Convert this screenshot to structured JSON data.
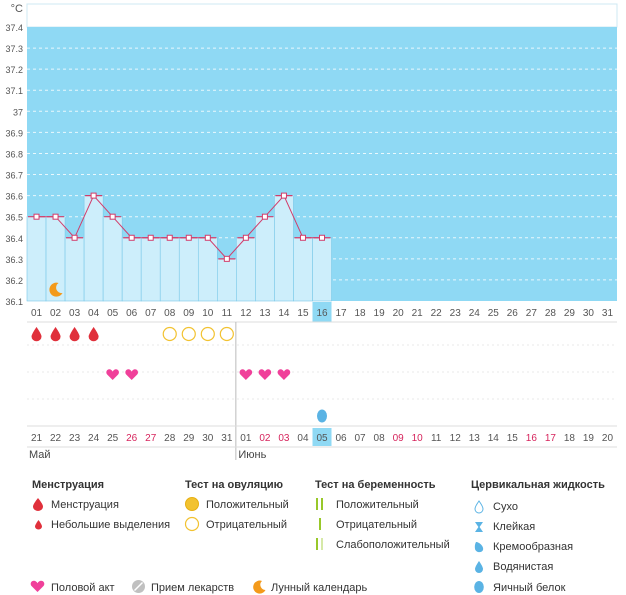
{
  "chart_data": {
    "type": "bar",
    "unit": "°C",
    "ylim": [
      36.1,
      37.4
    ],
    "y_ticks": [
      "36.1",
      "36.2",
      "36.3",
      "36.4",
      "36.5",
      "36.6",
      "36.7",
      "36.8",
      "36.9",
      "37",
      "37.1",
      "37.2",
      "37.3",
      "37.4"
    ],
    "top_days": [
      "01",
      "02",
      "03",
      "04",
      "05",
      "06",
      "07",
      "08",
      "09",
      "10",
      "11",
      "12",
      "13",
      "14",
      "15",
      "16",
      "17",
      "18",
      "19",
      "20",
      "21",
      "22",
      "23",
      "24",
      "25",
      "26",
      "27",
      "28",
      "29",
      "30",
      "31"
    ],
    "today_index": 15,
    "temperatures": [
      36.5,
      36.5,
      36.4,
      36.6,
      36.5,
      36.4,
      36.4,
      36.4,
      36.4,
      36.4,
      36.3,
      36.4,
      36.5,
      36.6,
      36.4,
      36.4
    ],
    "bottom_days": [
      {
        "d": "21",
        "red": false
      },
      {
        "d": "22",
        "red": false
      },
      {
        "d": "23",
        "red": false
      },
      {
        "d": "24",
        "red": false
      },
      {
        "d": "25",
        "red": false
      },
      {
        "d": "26",
        "red": true
      },
      {
        "d": "27",
        "red": true
      },
      {
        "d": "28",
        "red": false
      },
      {
        "d": "29",
        "red": false
      },
      {
        "d": "30",
        "red": false
      },
      {
        "d": "31",
        "red": false
      },
      {
        "d": "01",
        "red": false
      },
      {
        "d": "02",
        "red": true
      },
      {
        "d": "03",
        "red": true
      },
      {
        "d": "04",
        "red": false
      },
      {
        "d": "05",
        "red": false
      },
      {
        "d": "06",
        "red": false
      },
      {
        "d": "07",
        "red": false
      },
      {
        "d": "08",
        "red": false
      },
      {
        "d": "09",
        "red": true
      },
      {
        "d": "10",
        "red": true
      },
      {
        "d": "11",
        "red": false
      },
      {
        "d": "12",
        "red": false
      },
      {
        "d": "13",
        "red": false
      },
      {
        "d": "14",
        "red": false
      },
      {
        "d": "15",
        "red": false
      },
      {
        "d": "16",
        "red": true
      },
      {
        "d": "17",
        "red": true
      },
      {
        "d": "18",
        "red": false
      },
      {
        "d": "19",
        "red": false
      },
      {
        "d": "20",
        "red": false
      }
    ],
    "months": [
      {
        "label": "Май",
        "start_index": 0
      },
      {
        "label": "Июнь",
        "start_index": 11
      }
    ],
    "moon_index": 1,
    "menstruation_indices": [
      0,
      1,
      2,
      3
    ],
    "ovulation_negative_indices": [
      7,
      8,
      9,
      10
    ],
    "intercourse_indices": [
      4,
      5,
      11,
      12,
      13
    ],
    "egg_white_indices": [
      15
    ]
  },
  "legend": {
    "menstruation": {
      "title": "Менструация",
      "items": [
        "Менструация",
        "Небольшие выделения"
      ]
    },
    "ovulation": {
      "title": "Тест на овуляцию",
      "items": [
        "Положительный",
        "Отрицательный"
      ]
    },
    "pregnancy": {
      "title": "Тест на беременность",
      "items": [
        "Положительный",
        "Отрицательный",
        "Слабоположительный"
      ]
    },
    "cervical": {
      "title": "Цервикальная жидкость",
      "items": [
        "Сухо",
        "Клейкая",
        "Кремообразная",
        "Водянистая",
        "Яичный белок"
      ]
    },
    "bottom": [
      "Половой акт",
      "Прием лекарств",
      "Лунный календарь"
    ]
  },
  "colors": {
    "sky": "#8fd9f4",
    "bar": "#cdeefb",
    "bar_border": "#7ac8e8",
    "line": "#d23c6a",
    "drop": "#e0303b",
    "heart": "#f0409a",
    "ovulation": "#f2c230",
    "pregnancy": "#98c82a",
    "cervical": "#5ab3e4",
    "moon": "#f39a1b",
    "pill": "#bbbbbb"
  }
}
